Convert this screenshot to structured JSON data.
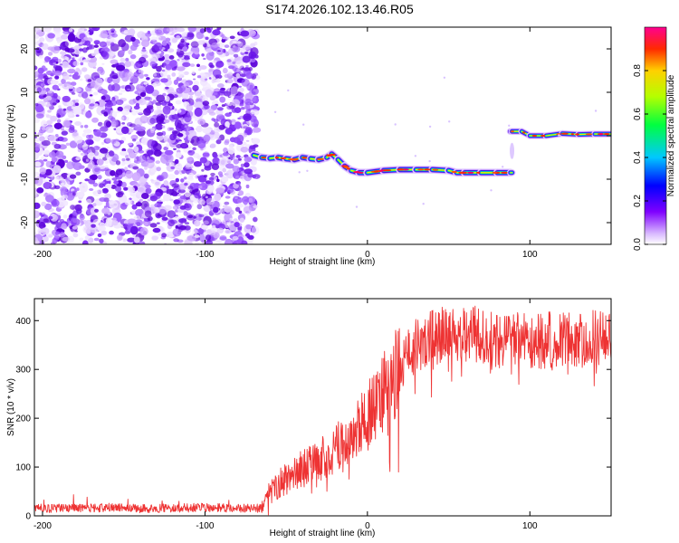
{
  "figure_title": "S174.2026.102.13.46.R05",
  "chart_data": [
    {
      "type": "heatmap",
      "title": "",
      "xlabel": "Height of straight line (km)",
      "ylabel": "Frequency (Hz)",
      "xlim": [
        -205,
        150
      ],
      "ylim": [
        -25,
        25
      ],
      "xticks": [
        -200,
        -100,
        0,
        100
      ],
      "yticks": [
        -20,
        -10,
        0,
        10,
        20
      ],
      "noise_region_x": [
        -205,
        -68
      ],
      "track": {
        "x": [
          -70,
          -65,
          -60,
          -55,
          -50,
          -45,
          -40,
          -35,
          -30,
          -25,
          -22,
          -18,
          -14,
          -10,
          -5,
          0,
          10,
          20,
          30,
          40,
          50,
          55,
          60,
          70,
          80,
          88,
          89,
          95,
          100,
          110,
          120,
          130,
          140,
          150
        ],
        "freq": [
          -4.5,
          -5,
          -5.2,
          -5,
          -5.3,
          -5.5,
          -5,
          -5.3,
          -5.5,
          -5,
          -4.2,
          -5.5,
          -7,
          -8,
          -8.5,
          -8.5,
          -8,
          -7.8,
          -7.8,
          -7.8,
          -8,
          -8.5,
          -8.5,
          -8.5,
          -8.5,
          -8.5,
          1,
          1,
          0,
          0,
          0.5,
          0.3,
          0.4,
          0.4
        ]
      },
      "colorbar": {
        "label": "Normalized spectral amplitude",
        "range": [
          0,
          1
        ],
        "ticks": [
          0.0,
          0.2,
          0.4,
          0.6,
          0.8
        ]
      }
    },
    {
      "type": "line",
      "title": "",
      "xlabel": "Height of straight line (km)",
      "ylabel": "SNR (10 * v/v)",
      "xlim": [
        -205,
        150
      ],
      "ylim": [
        0,
        445
      ],
      "xticks": [
        -200,
        -100,
        0,
        100
      ],
      "yticks": [
        0,
        100,
        200,
        300,
        400
      ],
      "series": [
        {
          "name": "SNR",
          "color": "#ee3333",
          "x": [
            -205,
            -180,
            -160,
            -140,
            -120,
            -100,
            -80,
            -65,
            -62,
            -55,
            -50,
            -45,
            -40,
            -35,
            -30,
            -25,
            -20,
            -15,
            -10,
            -5,
            0,
            5,
            10,
            15,
            20,
            25,
            30,
            40,
            50,
            60,
            70,
            80,
            90,
            100,
            110,
            120,
            130,
            140,
            150
          ],
          "y": [
            15,
            16,
            17,
            15,
            16,
            17,
            16,
            15,
            40,
            65,
            75,
            90,
            95,
            105,
            115,
            125,
            135,
            150,
            165,
            185,
            205,
            230,
            255,
            280,
            305,
            330,
            350,
            365,
            372,
            375,
            372,
            360,
            365,
            355,
            360,
            362,
            360,
            365,
            360
          ]
        }
      ]
    }
  ]
}
